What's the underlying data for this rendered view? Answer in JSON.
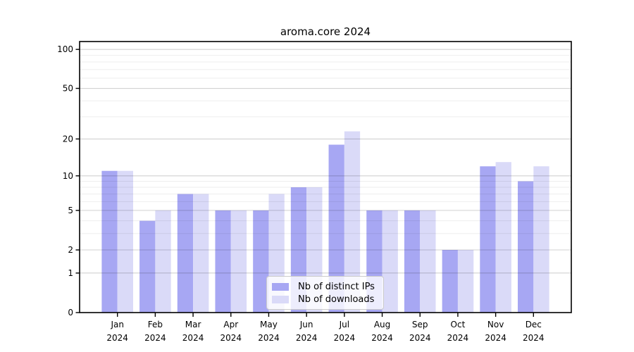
{
  "chart_data": {
    "type": "bar",
    "title": "aroma.core 2024",
    "categories": [
      "Jan",
      "Feb",
      "Mar",
      "Apr",
      "May",
      "Jun",
      "Jul",
      "Aug",
      "Sep",
      "Oct",
      "Nov",
      "Dec"
    ],
    "year_label": "2024",
    "series": [
      {
        "name": "Nb of distinct IPs",
        "color": "#a7a7f3",
        "values": [
          11,
          4,
          7,
          5,
          5,
          8,
          18,
          5,
          5,
          2,
          12,
          9
        ]
      },
      {
        "name": "Nb of downloads",
        "color": "#dadaf8",
        "values": [
          11,
          5,
          7,
          5,
          7,
          8,
          23,
          5,
          5,
          2,
          13,
          12
        ]
      }
    ],
    "xlabel": "",
    "ylabel": "",
    "yscale": "log1p",
    "ylim": [
      0,
      115
    ],
    "yticks_major": [
      0,
      1,
      2,
      5,
      10,
      20,
      50,
      100
    ],
    "yticks_minor": [
      3,
      4,
      6,
      7,
      8,
      9,
      30,
      40,
      60,
      70,
      80,
      90
    ],
    "grid": true,
    "legend_position": "bottom-center"
  },
  "colors": {
    "grid_major": "rgba(0,0,0,0.18)",
    "grid_minor": "rgba(0,0,0,0.07)",
    "spine": "#000000",
    "background": "#ffffff"
  }
}
